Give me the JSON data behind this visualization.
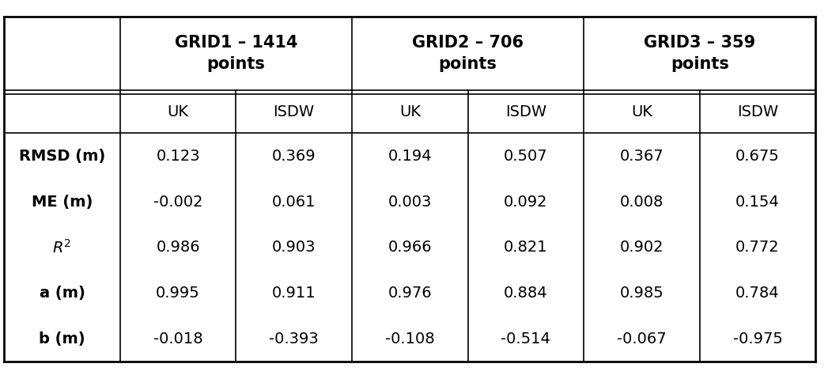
{
  "col_headers": [
    "GRID1 – 1414\npoints",
    "GRID2 – 706\npoints",
    "GRID3 – 359\npoints"
  ],
  "sub_headers": [
    "UK",
    "ISDW",
    "UK",
    "ISDW",
    "UK",
    "ISDW"
  ],
  "row_labels": [
    "RMSD (m)",
    "ME (m)",
    "R$^2$",
    "a (m)",
    "b (m)"
  ],
  "row_label_math": [
    false,
    false,
    true,
    false,
    false
  ],
  "data": [
    [
      "0.123",
      "0.369",
      "0.194",
      "0.507",
      "0.367",
      "0.675"
    ],
    [
      "-0.002",
      "0.061",
      "0.003",
      "0.092",
      "0.008",
      "0.154"
    ],
    [
      "0.986",
      "0.903",
      "0.966",
      "0.821",
      "0.902",
      "0.772"
    ],
    [
      "0.995",
      "0.911",
      "0.976",
      "0.884",
      "0.985",
      "0.784"
    ],
    [
      "-0.018",
      "-0.393",
      "-0.108",
      "-0.514",
      "-0.067",
      "-0.975"
    ]
  ],
  "background_color": "#ffffff",
  "line_color": "#000000",
  "text_color": "#000000",
  "font_size": 14,
  "header_font_size": 15,
  "figwidth": 10.47,
  "figheight": 4.74,
  "dpi": 100
}
